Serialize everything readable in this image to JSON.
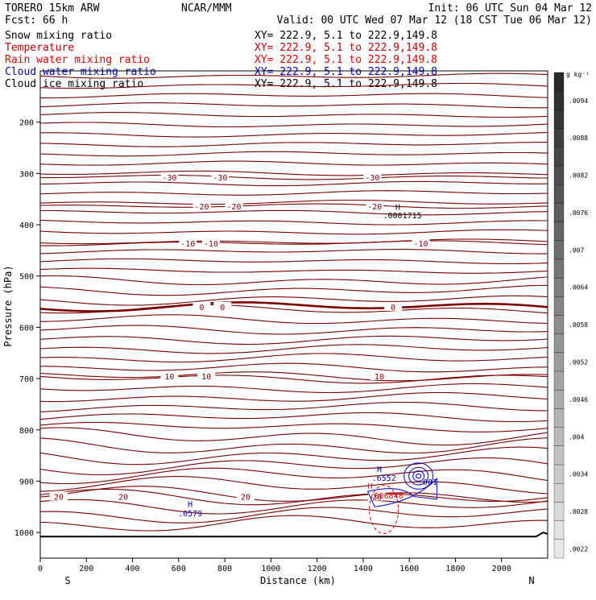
{
  "header": {
    "model": "TORERO  15km ARW",
    "org": "NCAR/MMM",
    "init": "Init: 06 UTC Sun 04 Mar 12",
    "fcst": "Fcst:   66 h",
    "valid": "Valid: 00 UTC Wed 07 Mar 12 (18 CST Tue 06 Mar 12)"
  },
  "fields": [
    {
      "label": "Snow mixing ratio",
      "xy": "XY= 222.9,  5.1 to 222.9,149.8",
      "color": "#000000"
    },
    {
      "label": "Temperature",
      "xy": "XY= 222.9,  5.1 to 222.9,149.8",
      "color": "#c00000"
    },
    {
      "label": "Rain water mixing ratio",
      "xy": "XY= 222.9,  5.1 to 222.9,149.8",
      "color": "#e00000"
    },
    {
      "label": "Cloud water mixing ratio",
      "xy": "XY= 222.9,  5.1 to 222.9,149.8",
      "color": "#0000c0"
    },
    {
      "label": "Cloud ice mixing ratio",
      "xy": "XY= 222.9,  5.1 to 222.9,149.8",
      "color": "#000000"
    }
  ],
  "colors": {
    "temperature": "#7a0000",
    "zero_isotherm": "#7a0000",
    "cloud_water": "#0000c0",
    "rain_water": "#e00000",
    "terrain": "#000000"
  },
  "chart_data": {
    "type": "line",
    "xlabel": "Distance (km)",
    "ylabel": "Pressure (hPa)",
    "xlim": [
      0,
      2200
    ],
    "ylim": [
      1050,
      100
    ],
    "x_ticks": [
      0,
      200,
      400,
      600,
      800,
      1000,
      1200,
      1400,
      1600,
      1800,
      2000
    ],
    "y_ticks": [
      200,
      300,
      400,
      500,
      600,
      700,
      800,
      900,
      1000
    ],
    "x_end_labels": {
      "left": "S",
      "right": "N"
    },
    "colorbar": {
      "unit": "g kg⁻¹",
      "labels": [
        ".0094",
        ".0088",
        ".0082",
        ".0076",
        ".007",
        ".0064",
        ".0058",
        ".0052",
        ".0046",
        ".004",
        ".0034",
        ".0028",
        ".0022"
      ]
    },
    "isotherms": [
      {
        "label": "-30",
        "level_hpa": 307,
        "label_x": [
          560,
          780,
          1440
        ]
      },
      {
        "label": "-20",
        "level_hpa": 364,
        "label_x": [
          700,
          840,
          1450
        ]
      },
      {
        "label": "-10",
        "level_hpa": 436,
        "label_x": [
          640,
          740,
          1650
        ]
      },
      {
        "label": "0",
        "level_hpa": 560,
        "label_x": [
          700,
          790,
          1530
        ]
      },
      {
        "label": "10",
        "level_hpa": 695,
        "label_x": [
          560,
          720,
          1470
        ]
      },
      {
        "label": "20",
        "level_hpa": 930,
        "label_x": [
          80,
          360,
          890,
          1460
        ]
      }
    ],
    "annotations": [
      {
        "text": "H",
        "x_km": 1550,
        "p_hpa": 371,
        "color": "#000000"
      },
      {
        "text": ".0001715",
        "x_km": 1570,
        "p_hpa": 387,
        "color": "#000000"
      },
      {
        "text": "H",
        "x_km": 650,
        "p_hpa": 950,
        "color": "#0000c0"
      },
      {
        "text": ".0579",
        "x_km": 650,
        "p_hpa": 968,
        "color": "#0000c0"
      },
      {
        "text": "H",
        "x_km": 1470,
        "p_hpa": 882,
        "color": "#0000c0"
      },
      {
        "text": ".6552",
        "x_km": 1490,
        "p_hpa": 899,
        "color": "#0000c0"
      },
      {
        "text": ".001",
        "x_km": 1680,
        "p_hpa": 907,
        "color": "#0000c0"
      },
      {
        "text": "H",
        "x_km": 1430,
        "p_hpa": 915,
        "color": "#e00000"
      },
      {
        "text": ".006848",
        "x_km": 1500,
        "p_hpa": 934,
        "color": "#e00000"
      }
    ]
  }
}
